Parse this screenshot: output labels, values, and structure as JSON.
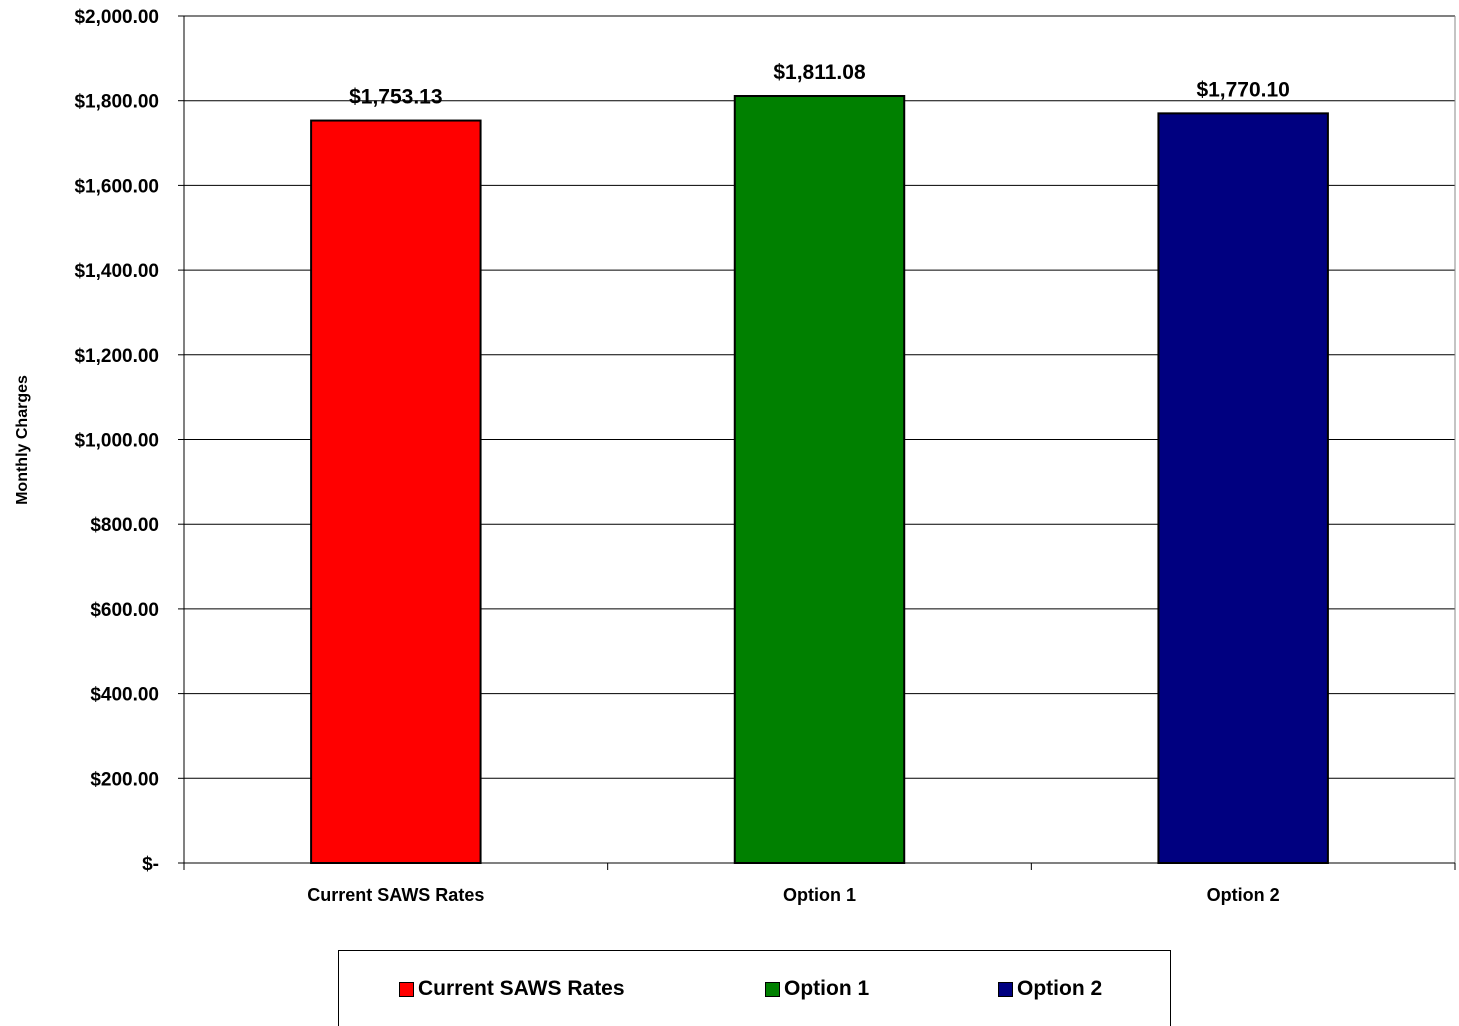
{
  "chart_data": {
    "type": "bar",
    "categories": [
      "Current SAWS Rates",
      "Option 1",
      "Option 2"
    ],
    "series": [
      {
        "name": "Current SAWS Rates",
        "color": "#FF0000",
        "values": [
          1753.13,
          null,
          null
        ]
      },
      {
        "name": "Option 1",
        "color": "#008000",
        "values": [
          null,
          1811.08,
          null
        ]
      },
      {
        "name": "Option 2",
        "color": "#000080",
        "values": [
          null,
          null,
          1770.1
        ]
      }
    ],
    "values": [
      1753.13,
      1811.08,
      1770.1
    ],
    "colors": [
      "#FF0000",
      "#008000",
      "#000080"
    ],
    "data_labels": [
      "$1,753.13",
      "$1,811.08",
      "$1,770.10"
    ],
    "title": "",
    "xlabel": "",
    "ylabel": "Monthly Charges",
    "ylim": [
      0,
      2000
    ],
    "yticks": [
      0,
      200,
      400,
      600,
      800,
      1000,
      1200,
      1400,
      1600,
      1800,
      2000
    ],
    "ytick_labels": [
      "$-",
      "$200.00",
      "$400.00",
      "$600.00",
      "$800.00",
      "$1,000.00",
      "$1,200.00",
      "$1,400.00",
      "$1,600.00",
      "$1,800.00",
      "$2,000.00"
    ],
    "grid": true,
    "legend_position": "bottom",
    "legend": [
      "Current SAWS Rates",
      "Option 1",
      "Option 2"
    ]
  }
}
